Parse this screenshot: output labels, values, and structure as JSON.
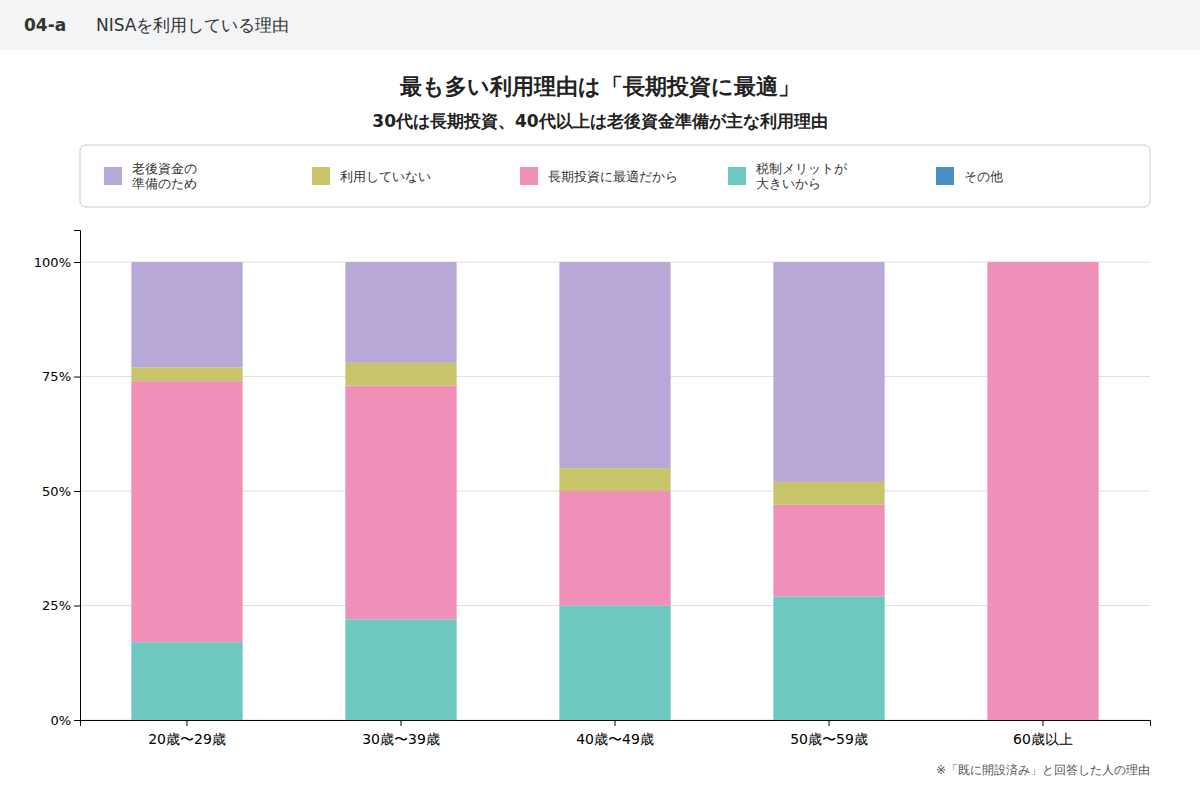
{
  "chart_data": {
    "type": "bar",
    "stacked": true,
    "title": "最も多い利用理由は「長期投資に最適」",
    "subtitle": "30代は長期投資、40代以上は老後資金準備が主な利用理由",
    "annotations": [
      "04-a",
      "NISAを利用している理由",
      "※「既に開設済み」と回答した人の理由"
    ],
    "categories": [
      "20歳〜29歳",
      "30歳〜39歳",
      "40歳〜49歳",
      "50歳〜59歳",
      "60歳以上"
    ],
    "series": [
      {
        "name": "税制メリットが\n大きいから",
        "color": "#6EC8C0",
        "values": [
          17,
          22,
          25,
          27,
          0
        ]
      },
      {
        "name": "長期投資に最適だから",
        "color": "#F090B8",
        "values": [
          57,
          51,
          25,
          20,
          100
        ]
      },
      {
        "name": "利用していない",
        "color": "#C8C46A",
        "values": [
          3,
          5,
          5,
          5,
          0
        ]
      },
      {
        "name": "老後資金の\n準備のため",
        "color": "#B8A8D8",
        "values": [
          23,
          22,
          45,
          48,
          0
        ]
      },
      {
        "name": "その他",
        "color": "#4A90C4",
        "values": [
          null,
          null,
          null,
          null,
          null
        ]
      }
    ],
    "ylim": [
      0,
      107
    ],
    "yticks": [
      {
        "value": 0,
        "label": "0%"
      },
      {
        "value": 25,
        "label": "25%"
      },
      {
        "value": 50,
        "label": "50%"
      },
      {
        "value": 75,
        "label": "75%"
      },
      {
        "value": 100,
        "label": "100%"
      }
    ],
    "grid": true,
    "legend": "top"
  }
}
